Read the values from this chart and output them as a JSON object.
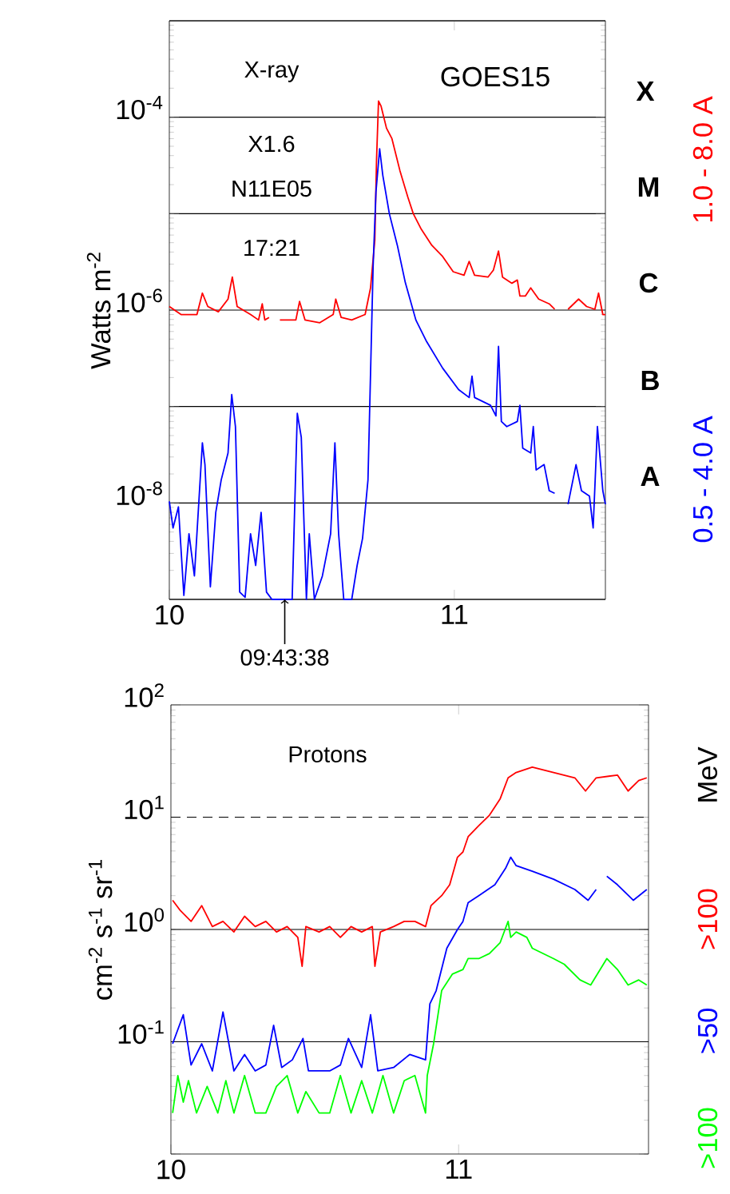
{
  "chart_data": [
    {
      "type": "line",
      "ylabel": "Watts  m$^{-2}$",
      "xlim": [
        10,
        11.53
      ],
      "ylim": [
        1e-09,
        0.001
      ],
      "log": true,
      "grid": "y",
      "legend": false,
      "xticks": [
        10,
        11
      ],
      "yticks": [
        {
          "value": 1e-09,
          "label": null
        },
        {
          "value": 1e-08,
          "label": "10$^{-8}$"
        },
        {
          "value": 1e-07,
          "label": null
        },
        {
          "value": 1e-06,
          "label": "10$^{-6}$"
        },
        {
          "value": 1e-05,
          "label": null
        },
        {
          "value": 0.0001,
          "label": "10$^{-4}$"
        },
        {
          "value": 0.001,
          "label": null
        }
      ],
      "annotations": [
        "X-ray",
        "GOES15",
        "X1.6",
        "N11E05",
        "17:21",
        "X",
        "M",
        "C",
        "B",
        "A",
        {
          "text": "09:43:38",
          "x": 10.405,
          "y": 1e-09
        }
      ],
      "series": [
        {
          "name": "1.0 - 8.0 A",
          "color": "#ff0000",
          "x": [
            10.0,
            10.041,
            10.097,
            10.116,
            10.135,
            10.172,
            10.206,
            10.221,
            10.238,
            10.285,
            10.313,
            10.326,
            10.335,
            10.35,
            10.36,
            10.388,
            10.444,
            10.457,
            10.476,
            10.528,
            10.575,
            10.584,
            10.603,
            10.64,
            10.687,
            10.706,
            10.721,
            10.727,
            10.734,
            10.743,
            10.762,
            10.781,
            10.809,
            10.837,
            10.856,
            10.884,
            10.921,
            10.959,
            10.996,
            11.034,
            11.052,
            11.071,
            11.118,
            11.137,
            11.155,
            11.169,
            11.202,
            11.221,
            11.23,
            11.249,
            11.268,
            11.296,
            11.333,
            11.352,
            11.37,
            11.399,
            11.436,
            11.464,
            11.493,
            11.506,
            11.521,
            11.53
          ],
          "values": [
            1.09e-06,
            9e-07,
            9e-07,
            1.5e-06,
            1.09e-06,
            9.6e-07,
            1.3e-06,
            2.2e-06,
            1.09e-06,
            9e-07,
            7.9e-07,
            1.16e-06,
            7.9e-07,
            8.4e-07,
            null,
            7.9e-07,
            7.9e-07,
            1.23e-06,
            7.9e-07,
            7.4e-07,
            9e-07,
            1.3e-06,
            8.4e-07,
            7.9e-07,
            9e-07,
            1.7e-06,
            5.3e-06,
            3.6e-05,
            0.000147,
            0.00013,
            7.7e-05,
            6e-05,
            2.8e-05,
            1.48e-05,
            1e-05,
            6.9e-06,
            4.7e-06,
            3.6e-06,
            2.5e-06,
            2.3e-06,
            3.2e-06,
            2.3e-06,
            2.2e-06,
            2.6e-06,
            4.1e-06,
            2.2e-06,
            1.9e-06,
            2.05e-06,
            1.4e-06,
            1.4e-06,
            1.7e-06,
            1.3e-06,
            1.16e-06,
            1.02e-06,
            null,
            1.02e-06,
            1.3e-06,
            1.09e-06,
            1.02e-06,
            1.5e-06,
            9e-07,
            9e-07
          ]
        },
        {
          "name": "0.5 - 4.0 A",
          "color": "#0000ff",
          "x": [
            10.0,
            10.013,
            10.032,
            10.051,
            10.069,
            10.088,
            10.116,
            10.125,
            10.144,
            10.163,
            10.182,
            10.206,
            10.219,
            10.232,
            10.247,
            10.266,
            10.285,
            10.303,
            10.322,
            10.341,
            10.36,
            10.406,
            10.431,
            10.449,
            10.463,
            10.481,
            10.491,
            10.509,
            10.537,
            10.566,
            10.581,
            10.594,
            10.612,
            10.64,
            10.659,
            10.678,
            10.697,
            10.706,
            10.715,
            10.725,
            10.738,
            10.749,
            10.772,
            10.8,
            10.828,
            10.865,
            10.903,
            10.959,
            11.015,
            11.052,
            11.062,
            11.071,
            11.127,
            11.146,
            11.155,
            11.165,
            11.184,
            11.221,
            11.23,
            11.24,
            11.268,
            11.277,
            11.287,
            11.315,
            11.333,
            11.352,
            11.37,
            11.399,
            11.427,
            11.446,
            11.474,
            11.487,
            11.502,
            11.521,
            11.53
          ],
          "values": [
            1.04e-08,
            5.5e-09,
            9.1e-09,
            1.1e-09,
            4.8e-09,
            1.75e-09,
            4.2e-08,
            2.5e-08,
            1.35e-09,
            8e-09,
            1.73e-08,
            3.3e-08,
            1.33e-07,
            6.2e-08,
            1.19e-09,
            1.05e-09,
            4.8e-09,
            2.25e-09,
            8e-09,
            1.19e-09,
            1e-09,
            1e-09,
            1e-09,
            8.5e-08,
            4.8e-08,
            1e-09,
            4.8e-09,
            1e-09,
            1.75e-09,
            4.8e-09,
            4.2e-08,
            4.8e-09,
            1e-09,
            1e-09,
            2.25e-09,
            4.3e-09,
            1.73e-08,
            2.2e-07,
            2.8e-06,
            1.68e-05,
            4.7e-05,
            2.5e-05,
            1e-05,
            4.7e-06,
            1.93e-06,
            7.9e-07,
            4.7e-07,
            2.5e-07,
            1.5e-07,
            1.24e-07,
            2.07e-07,
            1.24e-07,
            1.03e-07,
            8e-08,
            4.2e-07,
            7e-08,
            6.2e-08,
            7e-08,
            1.03e-07,
            3.7e-08,
            3.3e-08,
            6.2e-08,
            2.2e-08,
            2.5e-08,
            1.34e-08,
            1.26e-08,
            null,
            9.7e-09,
            2.5e-08,
            1.34e-08,
            1.18e-08,
            5.5e-09,
            6.2e-08,
            1.34e-08,
            9.7e-09
          ]
        }
      ]
    },
    {
      "type": "line",
      "ylabel": "cm$^{-2}$ s$^{-1}$ sr$^{-1}$",
      "xlim": [
        10,
        11.66
      ],
      "ylim": [
        0.01,
        100
      ],
      "log": true,
      "legend": false,
      "xticks": [
        10,
        11
      ],
      "yticks": [
        {
          "value": 0.01,
          "label": null
        },
        {
          "value": 0.1,
          "label": "10$^{-1}$"
        },
        {
          "value": 1,
          "label": "10$^{0}$"
        },
        {
          "value": 10,
          "label": "10$^{1}$"
        },
        {
          "value": 100,
          "label": "10$^{2}$"
        }
      ],
      "ref_lines": [
        {
          "axis": "y",
          "value": 10,
          "line_style": "dashed"
        },
        {
          "axis": "y",
          "value": 1,
          "line_style": "solid"
        },
        {
          "axis": "y",
          "value": 0.1,
          "line_style": "solid"
        }
      ],
      "annotations": [
        "Protons",
        "MeV"
      ],
      "series": [
        {
          "name": ">100",
          "color": "#ff0000",
          "x": [
            10.006,
            10.033,
            10.07,
            10.107,
            10.144,
            10.181,
            10.219,
            10.256,
            10.293,
            10.33,
            10.367,
            10.404,
            10.441,
            10.456,
            10.469,
            10.515,
            10.552,
            10.589,
            10.626,
            10.663,
            10.7,
            10.709,
            10.728,
            10.774,
            10.811,
            10.848,
            10.885,
            10.904,
            10.941,
            10.969,
            10.996,
            11.015,
            11.033,
            11.07,
            11.107,
            11.144,
            11.172,
            11.2,
            11.256,
            11.33,
            11.404,
            11.441,
            11.478,
            11.552,
            11.589,
            11.626,
            11.654
          ],
          "values": [
            1.82,
            1.47,
            1.18,
            1.63,
            1.06,
            1.18,
            0.95,
            1.31,
            1.06,
            1.18,
            0.95,
            1.06,
            0.85,
            0.47,
            1.06,
            0.95,
            1.06,
            0.85,
            1.06,
            0.95,
            1.06,
            0.47,
            0.95,
            1.06,
            1.18,
            1.18,
            1.06,
            1.63,
            2.0,
            2.5,
            4.4,
            4.9,
            6.7,
            8.4,
            10.4,
            14.5,
            22.4,
            25,
            27.9,
            25,
            22.4,
            17.1,
            22.4,
            23.7,
            17.1,
            21.2,
            22.4
          ]
        },
        {
          "name": ">50",
          "color": "#0000ff",
          "x": [
            10.006,
            10.043,
            10.07,
            10.107,
            10.144,
            10.181,
            10.219,
            10.256,
            10.293,
            10.33,
            10.357,
            10.385,
            10.422,
            10.459,
            10.478,
            10.515,
            10.552,
            10.589,
            10.617,
            10.663,
            10.694,
            10.719,
            10.774,
            10.83,
            10.885,
            10.9,
            10.922,
            10.959,
            10.996,
            11.015,
            11.033,
            11.07,
            11.126,
            11.163,
            11.181,
            11.2,
            11.256,
            11.33,
            11.404,
            11.45,
            11.478,
            11.496,
            11.515,
            11.552,
            11.607,
            11.654
          ],
          "values": [
            0.096,
            0.174,
            0.062,
            0.096,
            0.055,
            0.184,
            0.055,
            0.077,
            0.055,
            0.062,
            0.14,
            0.059,
            0.069,
            0.107,
            0.055,
            0.055,
            0.055,
            0.062,
            0.107,
            0.059,
            0.174,
            0.055,
            0.059,
            0.077,
            0.069,
            0.217,
            0.285,
            0.68,
            1.0,
            1.18,
            1.73,
            2.0,
            2.5,
            3.5,
            4.4,
            3.7,
            3.3,
            2.8,
            2.27,
            1.82,
            2.27,
            null,
            2.98,
            2.5,
            1.82,
            2.27
          ]
        },
        {
          "name": ">100",
          "color": "#00ff00",
          "x": [
            10.006,
            10.024,
            10.043,
            10.061,
            10.089,
            10.126,
            10.163,
            10.191,
            10.219,
            10.256,
            10.293,
            10.33,
            10.367,
            10.404,
            10.441,
            10.469,
            10.515,
            10.552,
            10.589,
            10.626,
            10.663,
            10.7,
            10.737,
            10.774,
            10.811,
            10.848,
            10.885,
            10.891,
            10.913,
            10.941,
            10.978,
            11.015,
            11.033,
            11.07,
            11.107,
            11.144,
            11.172,
            11.181,
            11.2,
            11.237,
            11.256,
            11.33,
            11.367,
            11.422,
            11.459,
            11.515,
            11.552,
            11.589,
            11.626,
            11.654
          ],
          "values": [
            0.0232,
            0.05,
            0.029,
            0.045,
            0.0232,
            0.04,
            0.0232,
            0.045,
            0.0232,
            0.05,
            0.0232,
            0.0232,
            0.04,
            0.05,
            0.0232,
            0.036,
            0.0232,
            0.0232,
            0.05,
            0.0232,
            0.045,
            0.0232,
            0.05,
            0.0232,
            0.045,
            0.05,
            0.0232,
            0.05,
            0.096,
            0.285,
            0.4,
            0.44,
            0.55,
            0.55,
            0.61,
            0.76,
            1.18,
            0.85,
            0.95,
            0.85,
            0.68,
            0.55,
            0.49,
            0.355,
            0.32,
            0.55,
            0.44,
            0.32,
            0.355,
            0.32
          ]
        }
      ]
    }
  ]
}
